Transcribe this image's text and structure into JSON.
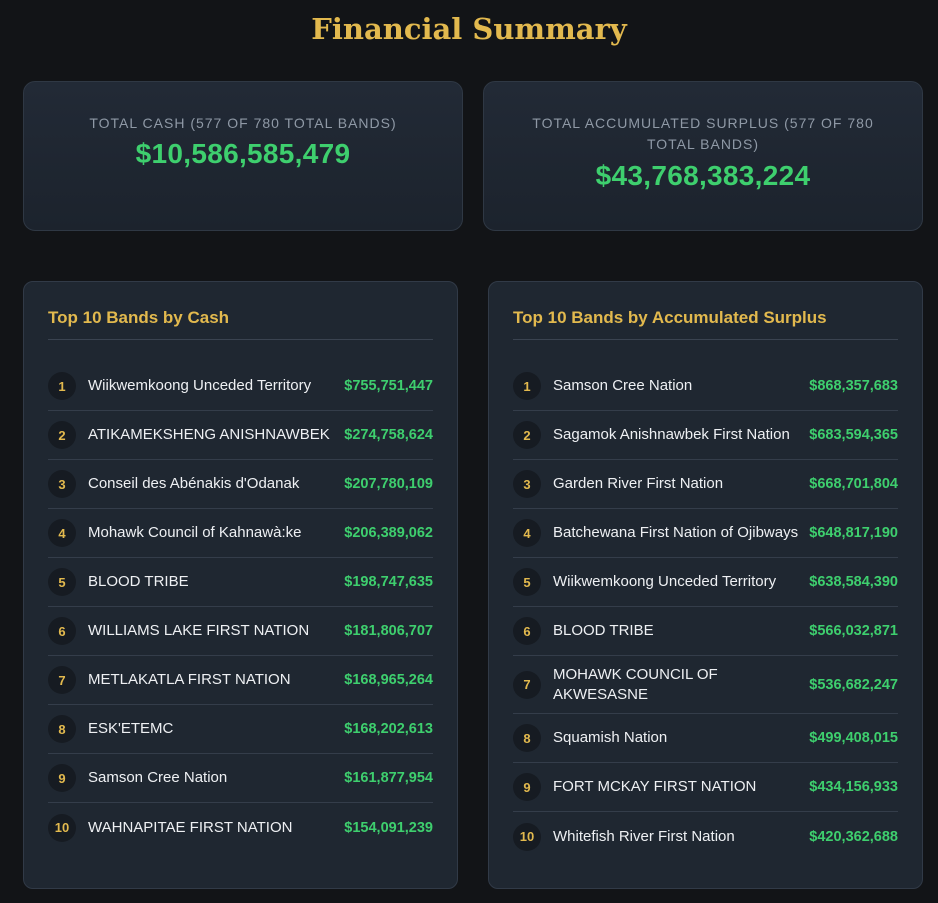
{
  "title": "Financial Summary",
  "colors": {
    "accent": "#e2b94e",
    "positive": "#3ecf6e",
    "background": "#121417",
    "card": "#1f2731"
  },
  "stats": [
    {
      "label": "TOTAL CASH (577 OF 780 TOTAL BANDS)",
      "value": "$10,586,585,479"
    },
    {
      "label": "TOTAL ACCUMULATED SURPLUS (577 OF 780 TOTAL BANDS)",
      "value": "$43,768,383,224"
    }
  ],
  "cash_list": {
    "title": "Top 10 Bands by Cash",
    "rows": [
      {
        "rank": "1",
        "name": "Wiikwemkoong Unceded Territory",
        "amount": "$755,751,447"
      },
      {
        "rank": "2",
        "name": "ATIKAMEKSHENG ANISHNAWBEK",
        "amount": "$274,758,624"
      },
      {
        "rank": "3",
        "name": "Conseil des Abénakis d'Odanak",
        "amount": "$207,780,109"
      },
      {
        "rank": "4",
        "name": "Mohawk Council of Kahnawà:ke",
        "amount": "$206,389,062"
      },
      {
        "rank": "5",
        "name": "BLOOD TRIBE",
        "amount": "$198,747,635"
      },
      {
        "rank": "6",
        "name": "WILLIAMS LAKE FIRST NATION",
        "amount": "$181,806,707"
      },
      {
        "rank": "7",
        "name": "METLAKATLA FIRST NATION",
        "amount": "$168,965,264"
      },
      {
        "rank": "8",
        "name": "ESK'ETEMC",
        "amount": "$168,202,613"
      },
      {
        "rank": "9",
        "name": "Samson Cree Nation",
        "amount": "$161,877,954"
      },
      {
        "rank": "10",
        "name": "WAHNAPITAE FIRST NATION",
        "amount": "$154,091,239"
      }
    ]
  },
  "surplus_list": {
    "title": "Top 10 Bands by Accumulated Surplus",
    "rows": [
      {
        "rank": "1",
        "name": "Samson Cree Nation",
        "amount": "$868,357,683"
      },
      {
        "rank": "2",
        "name": "Sagamok Anishnawbek First Nation",
        "amount": "$683,594,365"
      },
      {
        "rank": "3",
        "name": "Garden River First Nation",
        "amount": "$668,701,804"
      },
      {
        "rank": "4",
        "name": "Batchewana First Nation of Ojibways",
        "amount": "$648,817,190"
      },
      {
        "rank": "5",
        "name": "Wiikwemkoong Unceded Territory",
        "amount": "$638,584,390"
      },
      {
        "rank": "6",
        "name": "BLOOD TRIBE",
        "amount": "$566,032,871"
      },
      {
        "rank": "7",
        "name": "MOHAWK COUNCIL OF AKWESASNE",
        "amount": "$536,682,247"
      },
      {
        "rank": "8",
        "name": "Squamish Nation",
        "amount": "$499,408,015"
      },
      {
        "rank": "9",
        "name": "FORT MCKAY FIRST NATION",
        "amount": "$434,156,933"
      },
      {
        "rank": "10",
        "name": "Whitefish River First Nation",
        "amount": "$420,362,688"
      }
    ]
  }
}
